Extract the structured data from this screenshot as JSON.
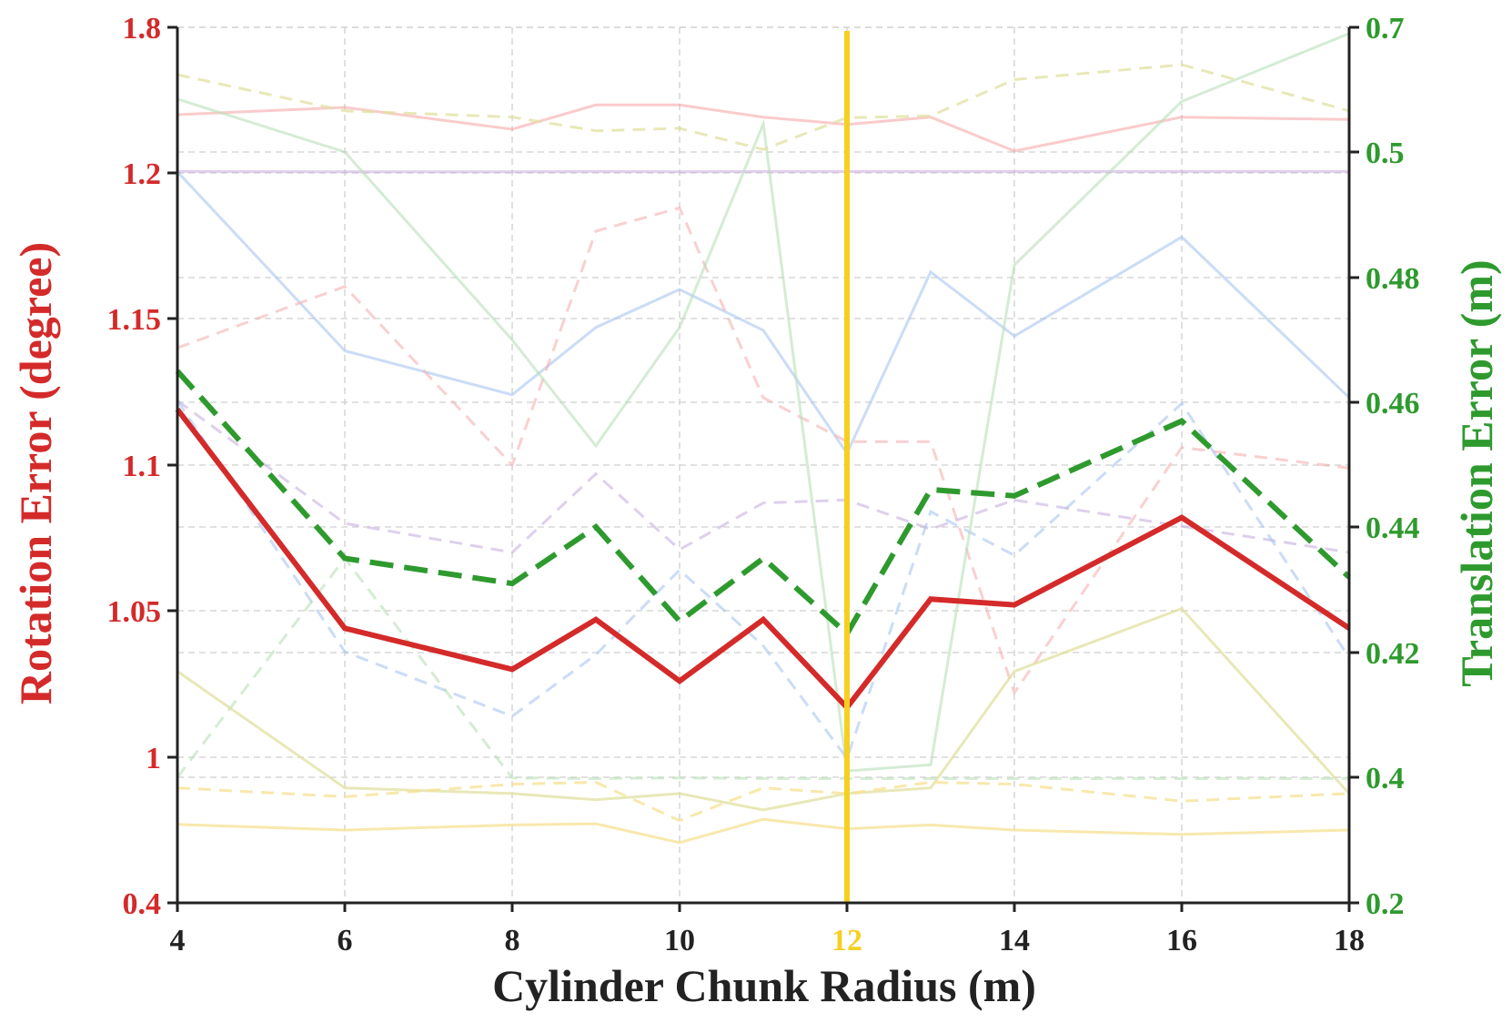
{
  "chart_data": {
    "type": "line",
    "xlabel": "Cylinder Chunk Radius (m)",
    "ylabel_left": "Rotation Error (degree)",
    "ylabel_right": "Translation Error (m)",
    "x_ticks": [
      4,
      6,
      8,
      10,
      12,
      14,
      16,
      18
    ],
    "highlight_x": 12,
    "left_ticks": [
      {
        "value": 0.4,
        "label": "0.4"
      },
      {
        "value": 1.0,
        "label": "1"
      },
      {
        "value": 1.05,
        "label": "1.05"
      },
      {
        "value": 1.1,
        "label": "1.1"
      },
      {
        "value": 1.15,
        "label": "1.15"
      },
      {
        "value": 1.2,
        "label": "1.2"
      },
      {
        "value": 1.8,
        "label": "1.8"
      }
    ],
    "right_ticks": [
      {
        "value": 0.2,
        "label": "0.2"
      },
      {
        "value": 0.4,
        "label": "0.4"
      },
      {
        "value": 0.42,
        "label": "0.42"
      },
      {
        "value": 0.44,
        "label": "0.44"
      },
      {
        "value": 0.46,
        "label": "0.46"
      },
      {
        "value": 0.48,
        "label": "0.48"
      },
      {
        "value": 0.5,
        "label": "0.5"
      },
      {
        "value": 0.7,
        "label": "0.7"
      }
    ],
    "grid": true,
    "colors": {
      "left_axis": "#d42a2a",
      "right_axis": "#2e9a2e",
      "highlight": "#f5d020",
      "tick": "#222222"
    },
    "series": [
      {
        "axis": "left",
        "color": "#d42a2a",
        "dash": "solid",
        "width": 6,
        "opacity": 1,
        "x": [
          4,
          6,
          8,
          9,
          10,
          11,
          12,
          13,
          14,
          16,
          18
        ],
        "y": [
          1.119,
          1.044,
          1.03,
          1.047,
          1.026,
          1.047,
          1.017,
          1.054,
          1.052,
          1.082,
          1.044
        ]
      },
      {
        "axis": "right",
        "color": "#2e9a2e",
        "dash": "dashed",
        "width": 6,
        "opacity": 1,
        "x": [
          4,
          6,
          8,
          9,
          10,
          11,
          12,
          13,
          14,
          16,
          18
        ],
        "y": [
          0.465,
          0.435,
          0.431,
          0.44,
          0.425,
          0.435,
          0.423,
          0.446,
          0.445,
          0.457,
          0.432
        ]
      },
      {
        "axis": "left",
        "color": "#f5a0a0",
        "dash": "solid",
        "width": 3,
        "opacity": 0.55,
        "x": [
          4,
          6,
          8,
          9,
          10,
          11,
          12,
          13,
          14,
          16,
          18
        ],
        "y": [
          1.44,
          1.47,
          1.38,
          1.48,
          1.48,
          1.43,
          1.4,
          1.43,
          1.29,
          1.43,
          1.42
        ]
      },
      {
        "axis": "left",
        "color": "#c8a8dc",
        "dash": "solid",
        "width": 3,
        "opacity": 0.55,
        "x": [
          4,
          6,
          8,
          9,
          10,
          11,
          12,
          13,
          14,
          16,
          18
        ],
        "y": [
          1.206,
          1.205,
          1.205,
          1.206,
          1.205,
          1.206,
          1.206,
          1.206,
          1.206,
          1.206,
          1.206
        ]
      },
      {
        "axis": "left",
        "color": "#a8c4f0",
        "dash": "solid",
        "width": 3,
        "opacity": 0.6,
        "x": [
          4,
          6,
          8,
          9,
          10,
          11,
          12,
          13,
          14,
          16,
          18
        ],
        "y": [
          1.205,
          1.139,
          1.124,
          1.147,
          1.16,
          1.146,
          1.104,
          1.166,
          1.144,
          1.178,
          1.123
        ]
      },
      {
        "axis": "left",
        "color": "#f5b0b0",
        "dash": "dashed",
        "width": 3,
        "opacity": 0.6,
        "x": [
          4,
          6,
          8,
          9,
          10,
          11,
          12,
          13,
          14,
          16,
          18
        ],
        "y": [
          1.14,
          1.161,
          1.1,
          1.18,
          1.188,
          1.123,
          1.108,
          1.108,
          1.022,
          1.106,
          1.099
        ]
      },
      {
        "axis": "left",
        "color": "#c8b0e0",
        "dash": "dashed",
        "width": 3,
        "opacity": 0.6,
        "x": [
          4,
          6,
          8,
          9,
          10,
          11,
          12,
          13,
          14,
          16,
          18
        ],
        "y": [
          1.122,
          1.08,
          1.07,
          1.097,
          1.071,
          1.087,
          1.088,
          1.078,
          1.088,
          1.079,
          1.07
        ]
      },
      {
        "axis": "left",
        "color": "#a8c4f0",
        "dash": "dashed",
        "width": 3,
        "opacity": 0.6,
        "x": [
          4,
          6,
          8,
          9,
          10,
          11,
          12,
          13,
          14,
          16,
          18
        ],
        "y": [
          1.122,
          1.036,
          1.014,
          1.035,
          1.064,
          1.038,
          0.995,
          1.084,
          1.069,
          1.121,
          1.034
        ]
      },
      {
        "axis": "right",
        "color": "#b8e0b8",
        "dash": "solid",
        "width": 3,
        "opacity": 0.6,
        "x": [
          4,
          6,
          8,
          9,
          10,
          11,
          12,
          13,
          14,
          16,
          18
        ],
        "y": [
          0.585,
          0.5,
          0.47,
          0.453,
          0.472,
          0.545,
          0.401,
          0.402,
          0.482,
          0.581,
          0.69
        ]
      },
      {
        "axis": "right",
        "color": "#b8e0b8",
        "dash": "dashed",
        "width": 3,
        "opacity": 0.6,
        "x": [
          4,
          6,
          8,
          9,
          10,
          11,
          12,
          13,
          14,
          16,
          18
        ],
        "y": [
          0.4,
          0.435,
          0.399,
          0.398,
          0.399,
          0.398,
          0.398,
          0.398,
          0.398,
          0.398,
          0.398
        ]
      },
      {
        "axis": "right",
        "color": "#e0e0a0",
        "dash": "dashed",
        "width": 3,
        "opacity": 0.75,
        "x": [
          4,
          6,
          8,
          9,
          10,
          11,
          12,
          13,
          14,
          16,
          18
        ],
        "y": [
          0.624,
          0.566,
          0.556,
          0.534,
          0.538,
          0.504,
          0.555,
          0.558,
          0.616,
          0.64,
          0.566
        ]
      },
      {
        "axis": "right",
        "color": "#e0e0a0",
        "dash": "solid",
        "width": 3,
        "opacity": 0.75,
        "x": [
          4,
          6,
          8,
          9,
          10,
          11,
          12,
          13,
          14,
          16,
          18
        ],
        "y": [
          0.417,
          0.383,
          0.374,
          0.364,
          0.374,
          0.348,
          0.374,
          0.383,
          0.417,
          0.427,
          0.374
        ]
      },
      {
        "axis": "right",
        "color": "#f5e090",
        "dash": "dashed",
        "width": 3,
        "opacity": 0.75,
        "x": [
          4,
          6,
          8,
          9,
          10,
          11,
          12,
          13,
          14,
          16,
          18
        ],
        "y": [
          0.383,
          0.369,
          0.389,
          0.392,
          0.331,
          0.383,
          0.374,
          0.392,
          0.389,
          0.362,
          0.374
        ]
      },
      {
        "axis": "right",
        "color": "#f5e090",
        "dash": "solid",
        "width": 3,
        "opacity": 0.75,
        "x": [
          4,
          6,
          8,
          9,
          10,
          11,
          12,
          13,
          14,
          16,
          18
        ],
        "y": [
          0.325,
          0.316,
          0.324,
          0.326,
          0.296,
          0.333,
          0.318,
          0.324,
          0.316,
          0.309,
          0.316
        ]
      }
    ]
  }
}
